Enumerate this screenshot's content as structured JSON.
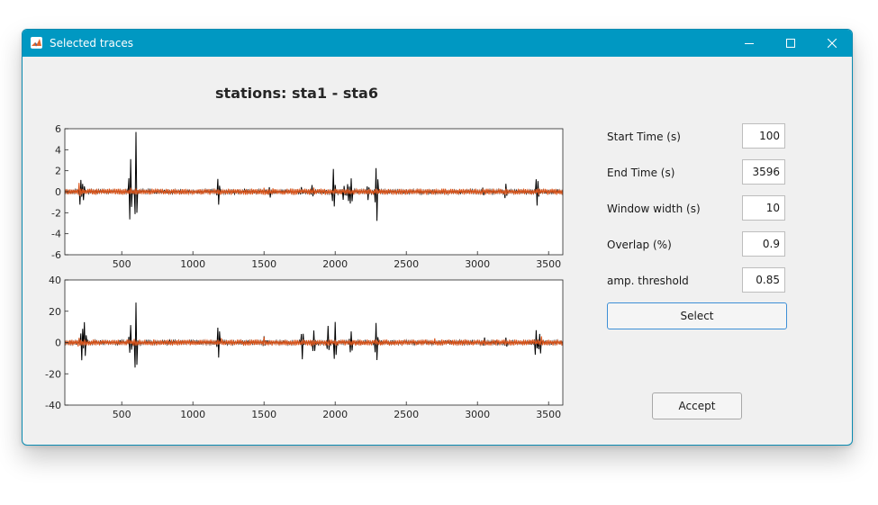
{
  "window": {
    "title": "Selected traces"
  },
  "titlebar": {
    "icons": [
      "matlab-icon",
      "minimize-icon",
      "maximize-icon",
      "close-icon"
    ]
  },
  "plot": {
    "title": "stations: sta1 - sta6"
  },
  "colors": {
    "titlebar": "#0098c2",
    "trace_primary": "#000000",
    "trace_selected": "#d95319"
  },
  "params": [
    {
      "label": "Start Time (s)",
      "value": "100"
    },
    {
      "label": "End Time (s)",
      "value": "3596"
    },
    {
      "label": "Window width (s)",
      "value": "10"
    },
    {
      "label": "Overlap (%)",
      "value": "0.9"
    },
    {
      "label": "amp. threshold",
      "value": "0.85"
    }
  ],
  "buttons": {
    "select": "Select",
    "accept": "Accept"
  },
  "chart_data": [
    {
      "type": "line",
      "title": "stations: sta1 - sta6",
      "xlim": [
        100,
        3600
      ],
      "ylim": [
        -6,
        6
      ],
      "xticks": [
        500,
        1000,
        1500,
        2000,
        2500,
        3000,
        3500
      ],
      "yticks": [
        -6,
        -4,
        -2,
        0,
        2,
        4,
        6
      ],
      "series": [
        {
          "color": "#000000",
          "baseline_amplitude": 0.15,
          "events": [
            [
              210,
              1.8
            ],
            [
              230,
              1.2
            ],
            [
              560,
              4.6
            ],
            [
              600,
              5.7
            ],
            [
              1180,
              2.2
            ],
            [
              1540,
              0.8
            ],
            [
              1760,
              0.6
            ],
            [
              1840,
              0.9
            ],
            [
              1990,
              3.1
            ],
            [
              2060,
              1.2
            ],
            [
              2090,
              1.5
            ],
            [
              2110,
              2.6
            ],
            [
              2230,
              1.2
            ],
            [
              2290,
              4.2
            ],
            [
              3040,
              0.7
            ],
            [
              3200,
              1.1
            ],
            [
              3420,
              2.6
            ]
          ]
        },
        {
          "color": "#d95319",
          "baseline_amplitude": 0.2,
          "events": [
            [
              200,
              0.9
            ],
            [
              560,
              0.5
            ],
            [
              600,
              0.6
            ],
            [
              1500,
              0.6
            ],
            [
              1560,
              0.5
            ],
            [
              1850,
              0.4
            ],
            [
              2600,
              0.4
            ],
            [
              3430,
              0.6
            ]
          ]
        }
      ]
    },
    {
      "type": "line",
      "xlim": [
        100,
        3600
      ],
      "ylim": [
        -40,
        40
      ],
      "xticks": [
        500,
        1000,
        1500,
        2000,
        2500,
        3000,
        3500
      ],
      "yticks": [
        -40,
        -20,
        0,
        20,
        40
      ],
      "series": [
        {
          "color": "#000000",
          "baseline_amplitude": 1.0,
          "events": [
            [
              220,
              22
            ],
            [
              240,
              18
            ],
            [
              560,
              14
            ],
            [
              600,
              29
            ],
            [
              1180,
              16
            ],
            [
              1500,
              5
            ],
            [
              1770,
              12
            ],
            [
              1850,
              14
            ],
            [
              1950,
              12
            ],
            [
              2000,
              20
            ],
            [
              2110,
              14
            ],
            [
              2290,
              18
            ],
            [
              3050,
              4
            ],
            [
              3200,
              5
            ],
            [
              3410,
              11
            ],
            [
              3440,
              12
            ]
          ]
        },
        {
          "color": "#d95319",
          "baseline_amplitude": 1.3,
          "events": [
            [
              200,
              5
            ],
            [
              590,
              4
            ],
            [
              1200,
              3
            ],
            [
              1500,
              4
            ],
            [
              1830,
              4
            ],
            [
              2700,
              3
            ],
            [
              3450,
              4
            ]
          ]
        }
      ]
    }
  ]
}
